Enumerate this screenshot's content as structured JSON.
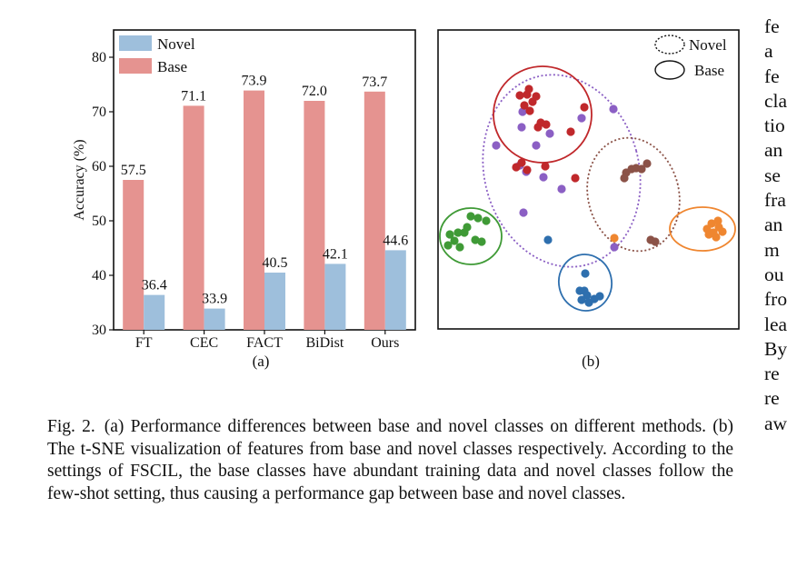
{
  "figure": {
    "panel_a_label": "(a)",
    "panel_b_label": "(b)"
  },
  "chart_data": {
    "type": "bar",
    "categories": [
      "FT",
      "CEC",
      "FACT",
      "BiDist",
      "Ours"
    ],
    "series": [
      {
        "name": "Base",
        "values": [
          57.5,
          71.1,
          73.9,
          72.0,
          73.7
        ],
        "color": "#e59390"
      },
      {
        "name": "Novel",
        "values": [
          36.4,
          33.9,
          40.5,
          42.1,
          44.6
        ],
        "color": "#9ebfdc"
      }
    ],
    "value_labels": {
      "Base": [
        "57.5",
        "71.1",
        "73.9",
        "72.0",
        "73.7"
      ],
      "Novel": [
        "36.4",
        "33.9",
        "40.5",
        "42.1",
        "44.6"
      ]
    },
    "legend_order": [
      "Novel",
      "Base"
    ],
    "legend_position": "top-left",
    "ylabel": "Accuracy (%)",
    "xlabel": "",
    "ylim": [
      30,
      85
    ],
    "yticks": [
      30,
      40,
      50,
      60,
      70,
      80
    ],
    "grid": false
  },
  "tsne": {
    "legend": {
      "novel": "Novel",
      "base": "Base"
    },
    "clusters": [
      {
        "id": "red-base",
        "kind": "base",
        "color": "#c0282b"
      },
      {
        "id": "purple-novel",
        "kind": "novel",
        "color": "#8b5fc4"
      },
      {
        "id": "brown-novel",
        "kind": "novel",
        "color": "#8b5247"
      },
      {
        "id": "green-base",
        "kind": "base",
        "color": "#3f9a36"
      },
      {
        "id": "blue-base",
        "kind": "base",
        "color": "#2e6fae"
      },
      {
        "id": "orange-base",
        "kind": "base",
        "color": "#ef8630"
      }
    ]
  },
  "caption": {
    "label": "Fig. 2.",
    "text": "(a) Performance differences between base and novel classes on different methods. (b) The t-SNE visualization of features from base and novel classes respectively. According to the settings of FSCIL, the base classes have abundant training data and novel classes follow the few-shot setting, thus causing a performance gap between base and novel classes."
  },
  "right_column_fragments": [
    "fe",
    "a",
    "fe",
    "cla",
    "tio",
    "an",
    "se",
    "fra",
    "an",
    "m",
    "ou",
    "fro",
    "lea",
    "By",
    "re",
    "re",
    "aw"
  ]
}
